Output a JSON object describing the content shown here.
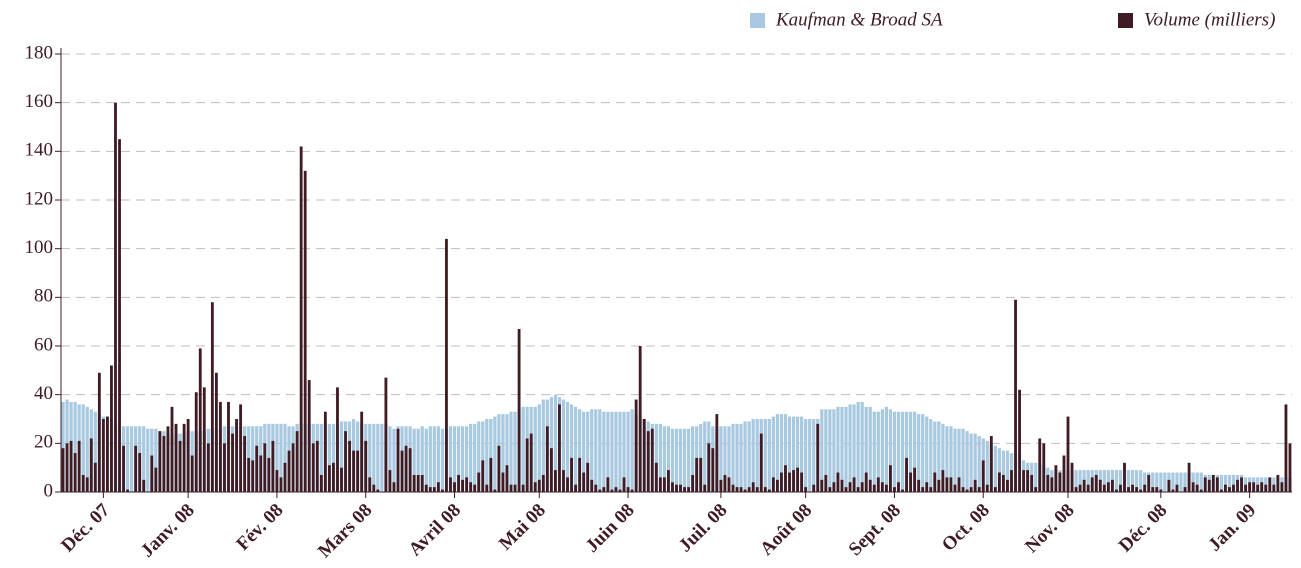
{
  "chart_data": {
    "type": "bar",
    "categories": [
      null,
      null,
      null,
      null,
      null,
      null,
      null,
      null,
      null,
      null,
      "Déc. 07",
      null,
      null,
      null,
      null,
      null,
      null,
      null,
      null,
      null,
      null,
      null,
      null,
      null,
      null,
      null,
      null,
      null,
      null,
      null,
      null,
      "Janv. 08",
      null,
      null,
      null,
      null,
      null,
      null,
      null,
      null,
      null,
      null,
      null,
      null,
      null,
      null,
      null,
      null,
      null,
      null,
      null,
      null,
      null,
      "Fév. 08",
      null,
      null,
      null,
      null,
      null,
      null,
      null,
      null,
      null,
      null,
      null,
      null,
      null,
      null,
      null,
      null,
      null,
      null,
      null,
      null,
      null,
      "Mars 08",
      null,
      null,
      null,
      null,
      null,
      null,
      null,
      null,
      null,
      null,
      null,
      null,
      null,
      null,
      null,
      null,
      null,
      null,
      null,
      null,
      null,
      "Avril 08",
      null,
      null,
      null,
      null,
      null,
      null,
      null,
      null,
      null,
      null,
      null,
      null,
      null,
      null,
      null,
      null,
      null,
      null,
      null,
      null,
      "Mai 08",
      null,
      null,
      null,
      null,
      null,
      null,
      null,
      null,
      null,
      null,
      null,
      null,
      null,
      null,
      null,
      null,
      null,
      null,
      null,
      null,
      null,
      "Juin 08",
      null,
      null,
      null,
      null,
      null,
      null,
      null,
      null,
      null,
      null,
      null,
      null,
      null,
      null,
      null,
      null,
      null,
      null,
      null,
      null,
      null,
      null,
      "Juil. 08",
      null,
      null,
      null,
      null,
      null,
      null,
      null,
      null,
      null,
      null,
      null,
      null,
      null,
      null,
      null,
      null,
      null,
      null,
      null,
      null,
      "Août 08",
      null,
      null,
      null,
      null,
      null,
      null,
      null,
      null,
      null,
      null,
      null,
      null,
      null,
      null,
      null,
      null,
      null,
      null,
      null,
      null,
      null,
      "Sept. 08",
      null,
      null,
      null,
      null,
      null,
      null,
      null,
      null,
      null,
      null,
      null,
      null,
      null,
      null,
      null,
      null,
      null,
      null,
      null,
      null,
      null,
      "Oct. 08",
      null,
      null,
      null,
      null,
      null,
      null,
      null,
      null,
      null,
      null,
      null,
      null,
      null,
      null,
      null,
      null,
      null,
      null,
      null,
      null,
      "Nov. 08",
      null,
      null,
      null,
      null,
      null,
      null,
      null,
      null,
      null,
      null,
      null,
      null,
      null,
      null,
      null,
      null,
      null,
      null,
      null,
      null,
      null,
      null,
      "Déc. 08",
      null,
      null,
      null,
      null,
      null,
      null,
      null,
      null,
      null,
      null,
      null,
      null,
      null,
      null,
      null,
      null,
      null,
      null,
      null,
      null,
      null,
      "Jan. 09",
      null,
      null,
      null,
      null,
      null,
      null,
      null,
      null,
      null,
      null
    ],
    "series": [
      {
        "name": "Kaufman & Broad SA",
        "color": "#a9c9e0",
        "values": [
          37,
          38,
          37,
          37,
          36,
          36,
          35,
          34,
          33,
          32,
          31,
          31,
          30,
          28,
          27,
          27,
          27,
          27,
          27,
          27,
          27,
          26,
          26,
          26,
          25,
          25,
          24,
          24,
          24,
          24,
          24,
          25,
          25,
          25,
          25,
          25,
          26,
          26,
          26,
          26,
          27,
          27,
          27,
          27,
          27,
          27,
          27,
          27,
          27,
          27,
          28,
          28,
          28,
          28,
          28,
          28,
          27,
          27,
          28,
          28,
          28,
          28,
          28,
          28,
          28,
          28,
          28,
          28,
          28,
          29,
          29,
          29,
          30,
          29,
          28,
          28,
          28,
          28,
          28,
          28,
          28,
          27,
          26,
          27,
          27,
          27,
          27,
          26,
          26,
          27,
          26,
          27,
          27,
          27,
          26,
          26,
          27,
          27,
          27,
          27,
          27,
          28,
          28,
          29,
          29,
          30,
          30,
          31,
          32,
          32,
          32,
          33,
          33,
          34,
          35,
          35,
          35,
          35,
          36,
          38,
          38,
          39,
          40,
          39,
          38,
          37,
          36,
          35,
          34,
          33,
          33,
          34,
          34,
          34,
          33,
          33,
          33,
          33,
          33,
          33,
          33,
          34,
          32,
          31,
          30,
          29,
          28,
          28,
          28,
          27,
          27,
          26,
          26,
          26,
          26,
          26,
          27,
          27,
          28,
          29,
          29,
          27,
          26,
          27,
          27,
          27,
          28,
          28,
          28,
          29,
          29,
          30,
          30,
          30,
          30,
          30,
          31,
          32,
          32,
          32,
          31,
          31,
          31,
          31,
          30,
          30,
          30,
          30,
          34,
          34,
          34,
          34,
          35,
          35,
          35,
          36,
          36,
          37,
          37,
          35,
          35,
          33,
          33,
          34,
          35,
          34,
          33,
          33,
          33,
          33,
          33,
          33,
          32,
          32,
          31,
          30,
          29,
          29,
          28,
          27,
          27,
          26,
          26,
          26,
          25,
          24,
          24,
          23,
          22,
          21,
          20,
          19,
          18,
          17,
          17,
          16,
          16,
          16,
          13,
          12,
          12,
          12,
          12,
          11,
          10,
          9,
          9,
          9,
          9,
          9,
          9,
          9,
          9,
          9,
          9,
          9,
          9,
          9,
          9,
          9,
          9,
          9,
          9,
          9,
          9,
          9,
          9,
          9,
          8,
          8,
          8,
          8,
          8,
          8,
          8,
          8,
          8,
          8,
          8,
          8,
          8,
          8,
          8,
          7,
          7,
          7,
          7,
          7,
          7,
          7,
          7,
          7,
          7,
          6,
          6,
          6,
          6,
          6,
          6,
          6,
          6,
          6,
          6,
          6,
          6
        ]
      },
      {
        "name": "Volume (milliers)",
        "color": "#3f1c24",
        "values": [
          18,
          20,
          21,
          16,
          21,
          7,
          6,
          22,
          12,
          49,
          30,
          31,
          52,
          160,
          145,
          19,
          1,
          0,
          19,
          16,
          5,
          0,
          15,
          10,
          25,
          23,
          27,
          35,
          28,
          21,
          28,
          30,
          15,
          41,
          59,
          43,
          20,
          78,
          49,
          37,
          20,
          37,
          24,
          30,
          36,
          23,
          14,
          13,
          19,
          15,
          20,
          14,
          21,
          9,
          6,
          12,
          17,
          20,
          25,
          142,
          132,
          46,
          20,
          21,
          7,
          33,
          11,
          12,
          43,
          10,
          25,
          21,
          17,
          17,
          33,
          21,
          6,
          3,
          1,
          0,
          47,
          9,
          4,
          26,
          17,
          19,
          18,
          7,
          7,
          7,
          3,
          2,
          2,
          4,
          1,
          104,
          6,
          4,
          7,
          5,
          6,
          4,
          3,
          8,
          13,
          3,
          14,
          1,
          19,
          8,
          11,
          3,
          3,
          67,
          3,
          22,
          24,
          4,
          5,
          7,
          27,
          18,
          9,
          36,
          9,
          6,
          14,
          3,
          14,
          8,
          12,
          5,
          3,
          1,
          2,
          6,
          1,
          2,
          1,
          6,
          2,
          1,
          38,
          60,
          30,
          25,
          26,
          12,
          6,
          6,
          9,
          4,
          3,
          3,
          2,
          2,
          7,
          14,
          14,
          3,
          20,
          18,
          32,
          5,
          7,
          6,
          3,
          2,
          2,
          1,
          2,
          4,
          2,
          24,
          2,
          1,
          6,
          5,
          8,
          11,
          8,
          9,
          10,
          8,
          2,
          0,
          3,
          28,
          5,
          7,
          2,
          4,
          8,
          5,
          2,
          4,
          6,
          2,
          4,
          8,
          5,
          3,
          6,
          4,
          3,
          11,
          2,
          4,
          1,
          14,
          8,
          10,
          5,
          2,
          4,
          2,
          8,
          5,
          9,
          6,
          6,
          3,
          6,
          2,
          1,
          2,
          5,
          2,
          13,
          3,
          23,
          2,
          8,
          7,
          5,
          9,
          79,
          42,
          9,
          9,
          7,
          2,
          22,
          20,
          7,
          6,
          11,
          8,
          15,
          31,
          12,
          2,
          3,
          5,
          3,
          6,
          7,
          5,
          3,
          4,
          5,
          1,
          3,
          12,
          2,
          3,
          2,
          1,
          3,
          7,
          2,
          2,
          1,
          0,
          5,
          1,
          3,
          0,
          2,
          12,
          4,
          3,
          1,
          6,
          5,
          7,
          6,
          1,
          3,
          2,
          3,
          5,
          6,
          3,
          4,
          4,
          3,
          4,
          3,
          6,
          3,
          7,
          4,
          36,
          20
        ]
      }
    ],
    "ylim": [
      0,
      180
    ],
    "yticks": [
      0,
      20,
      40,
      60,
      80,
      100,
      120,
      140,
      160,
      180
    ],
    "grid": true,
    "legend": "top-right"
  }
}
